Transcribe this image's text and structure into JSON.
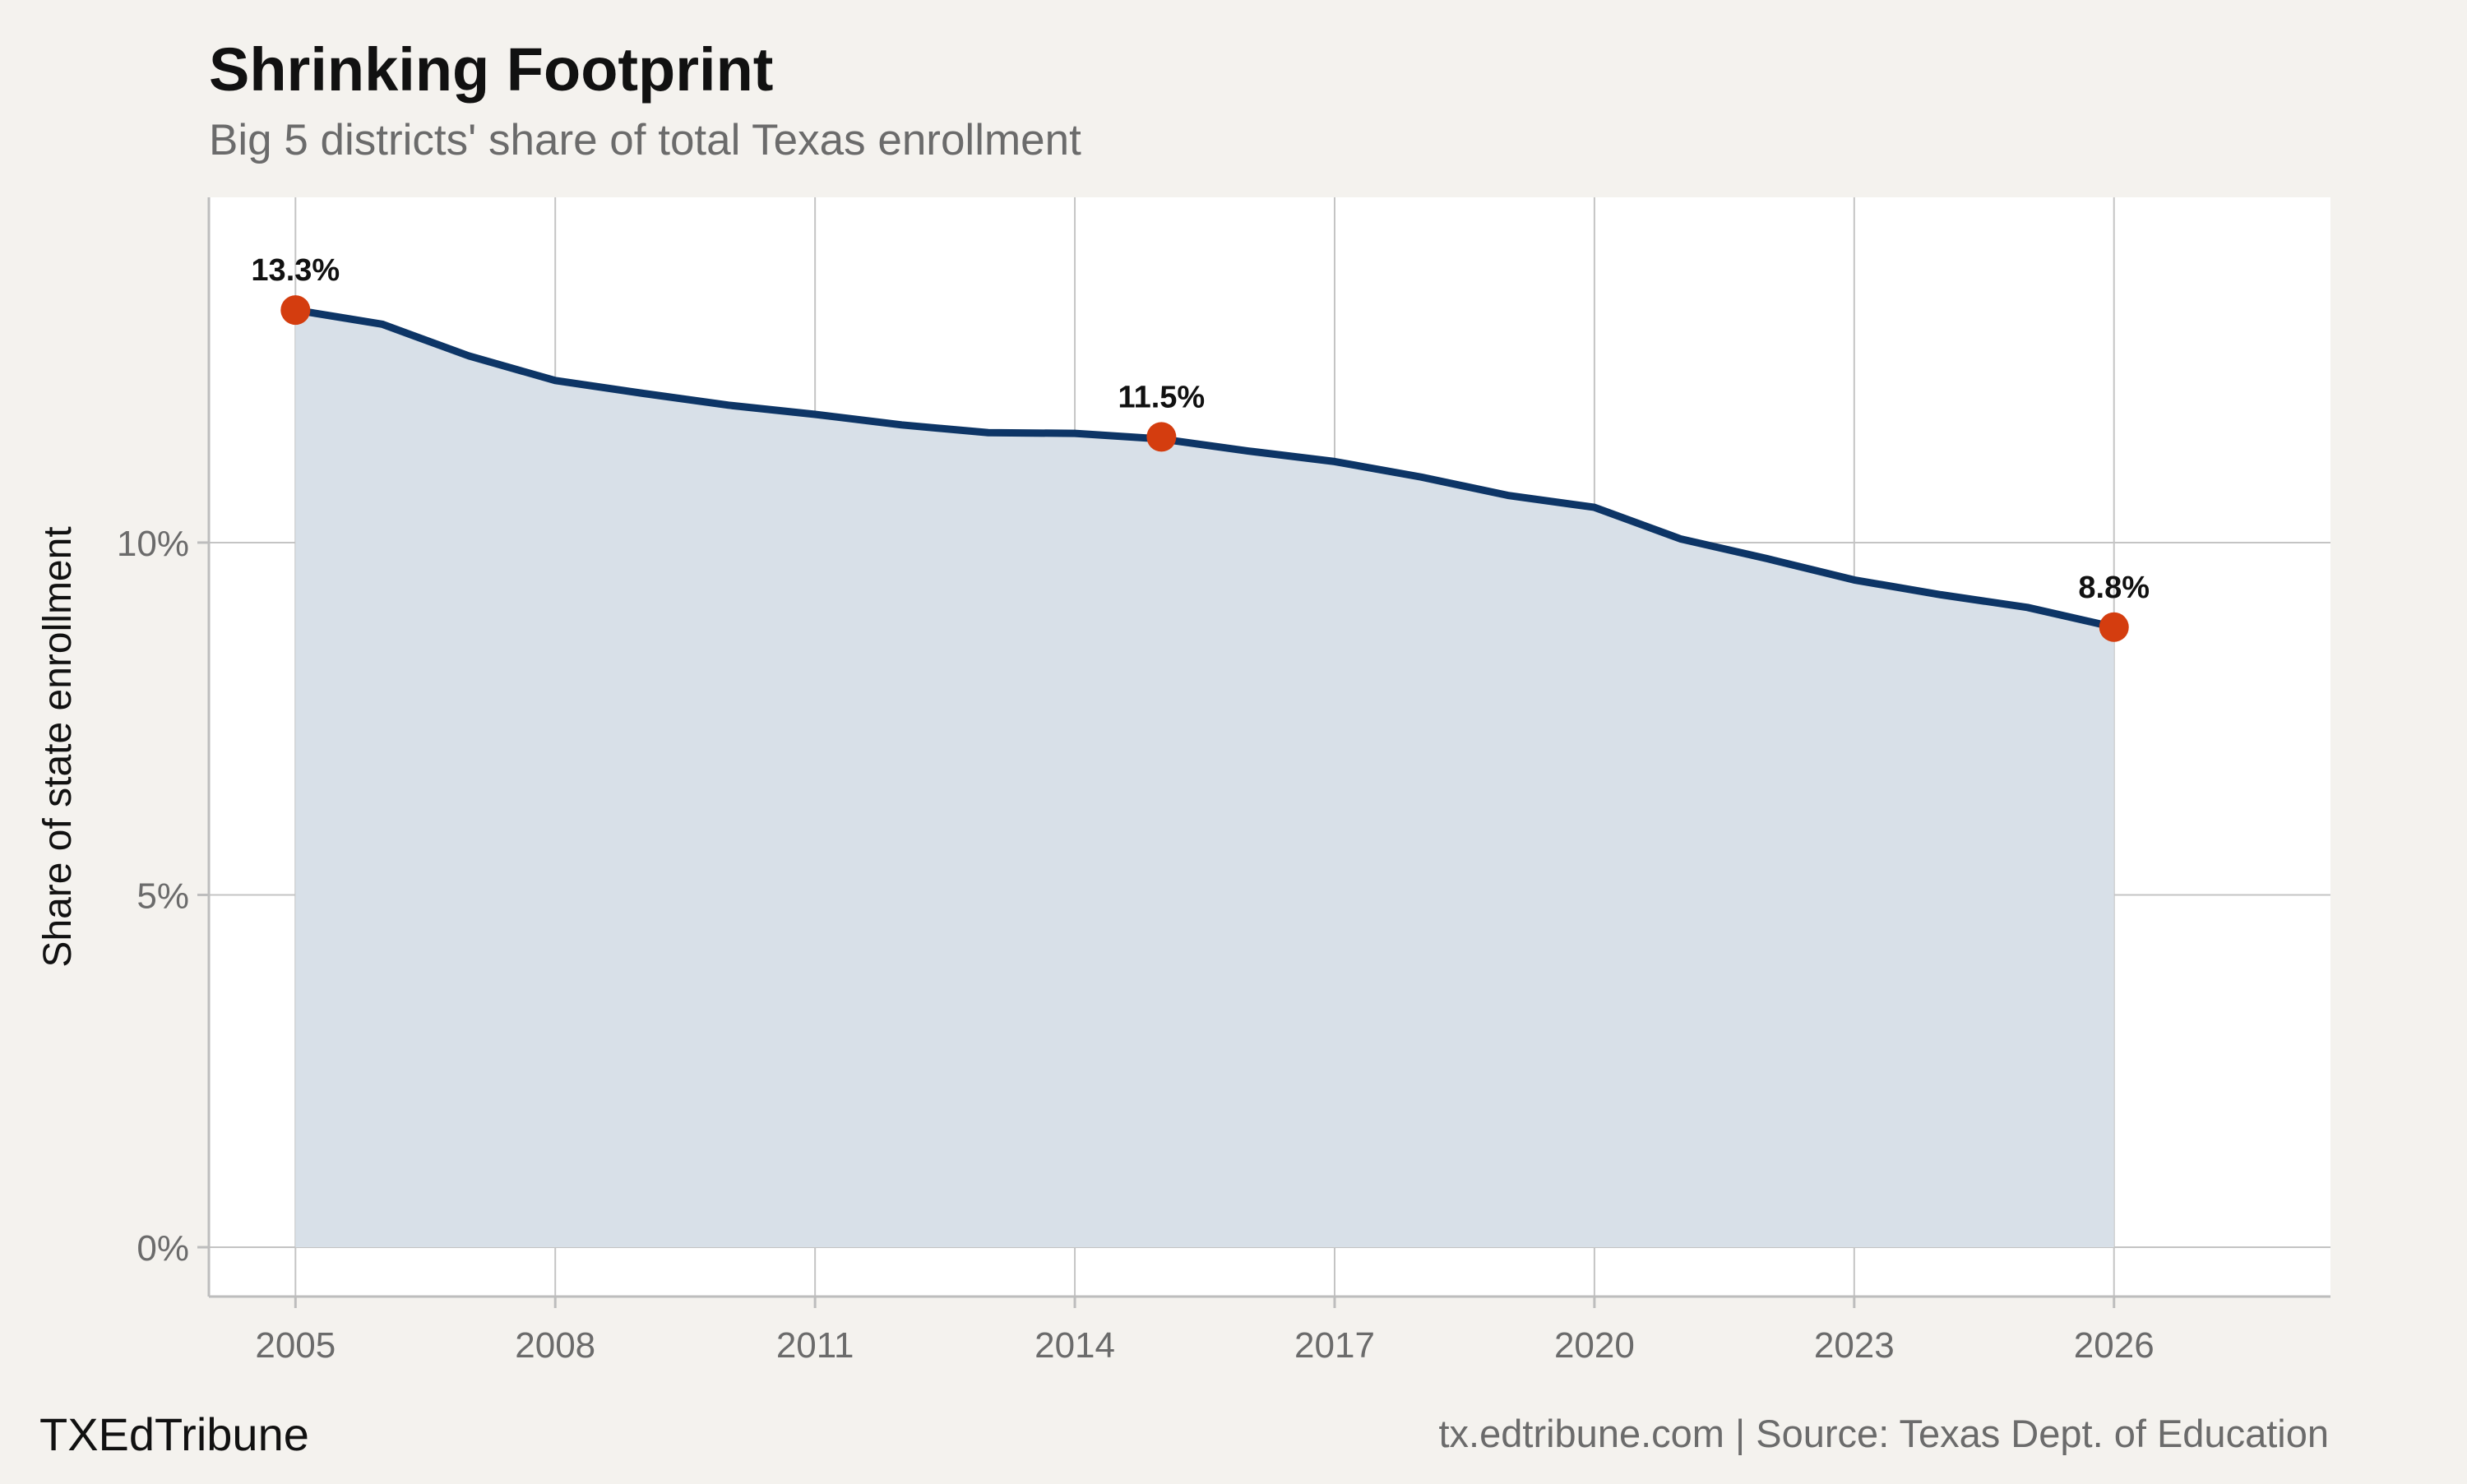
{
  "header": {
    "title": "Shrinking Footprint",
    "subtitle": "Big 5 districts' share of total Texas enrollment"
  },
  "footer": {
    "brand": "TXEdTribune",
    "source": "tx.edtribune.com | Source: Texas Dept. of Education"
  },
  "colors": {
    "background": "#f4f2ee",
    "panel": "#ffffff",
    "line": "#0d3566",
    "area": "#d8e0e8",
    "marker": "#d43d0f",
    "grid": "#c4c4c4"
  },
  "chart_data": {
    "type": "area",
    "title": "Shrinking Footprint",
    "subtitle": "Big 5 districts' share of total Texas enrollment",
    "xlabel": "",
    "ylabel": "Share of state enrollment",
    "xlim": [
      2004,
      2028.5
    ],
    "ylim": [
      -0.7,
      14.9
    ],
    "x_ticks": [
      2005,
      2008,
      2011,
      2014,
      2017,
      2020,
      2023,
      2026
    ],
    "x_tick_labels": [
      "2005",
      "2008",
      "2011",
      "2014",
      "2017",
      "2020",
      "2023",
      "2026"
    ],
    "y_ticks": [
      0,
      5,
      10
    ],
    "y_tick_labels": [
      "0%",
      "5%",
      "10%"
    ],
    "grid": true,
    "x": [
      2005,
      2006,
      2007,
      2008,
      2009,
      2010,
      2011,
      2012,
      2013,
      2014,
      2015,
      2016,
      2017,
      2018,
      2019,
      2020,
      2021,
      2022,
      2023,
      2024,
      2025,
      2026
    ],
    "series": [
      {
        "values": [
          13.3,
          13.1,
          12.65,
          12.3,
          12.12,
          11.95,
          11.82,
          11.67,
          11.56,
          11.55,
          11.47,
          11.3,
          11.15,
          10.93,
          10.67,
          10.5,
          10.05,
          9.77,
          9.47,
          9.26,
          9.08,
          8.8
        ]
      }
    ],
    "annotations": [
      {
        "x": 2005,
        "y": 13.3,
        "label": "13.3%"
      },
      {
        "x": 2015,
        "y": 11.5,
        "label": "11.5%"
      },
      {
        "x": 2026,
        "y": 8.8,
        "label": "8.8%"
      }
    ]
  }
}
